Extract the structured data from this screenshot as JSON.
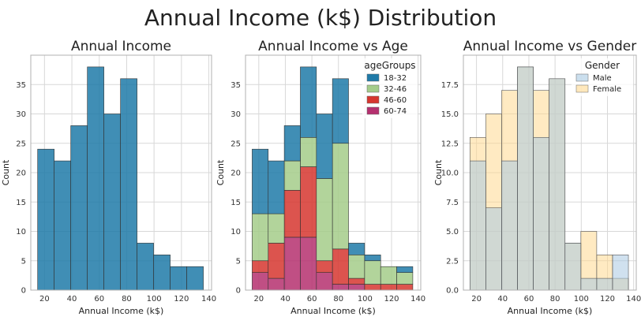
{
  "title": "Annual Income (k$) Distribution",
  "chart_data": [
    {
      "type": "histogram",
      "title": "Annual Income",
      "xlabel": "Annual Income (k$)",
      "ylabel": "Count",
      "xlim": [
        10,
        142
      ],
      "ylim": [
        0,
        40
      ],
      "xticks": [
        20,
        40,
        60,
        80,
        100,
        120,
        140
      ],
      "yticks": [
        0,
        5,
        10,
        15,
        20,
        25,
        30,
        35
      ],
      "bin_edges": [
        15,
        27.1,
        39.2,
        51.3,
        63.4,
        75.5,
        87.6,
        99.7,
        111.8,
        123.9,
        136
      ],
      "series": [
        {
          "values": [
            24,
            22,
            28,
            38,
            30,
            36,
            8,
            6,
            4,
            4
          ],
          "color": "#1f7aa8"
        }
      ],
      "stacked": false,
      "grid": true
    },
    {
      "type": "histogram",
      "title": "Annual Income vs Age",
      "xlabel": "Annual Income (k$)",
      "ylabel": "Count",
      "xlim": [
        10,
        142
      ],
      "ylim": [
        0,
        40
      ],
      "xticks": [
        20,
        40,
        60,
        80,
        100,
        120,
        140
      ],
      "yticks": [
        0,
        5,
        10,
        15,
        20,
        25,
        30,
        35
      ],
      "bin_edges": [
        15,
        27.1,
        39.2,
        51.3,
        63.4,
        75.5,
        87.6,
        99.7,
        111.8,
        123.9,
        136
      ],
      "stacked": true,
      "legend_title": "ageGroups",
      "legend_position": "top-right",
      "series": [
        {
          "name": "60-74",
          "values": [
            3,
            2,
            9,
            9,
            3,
            1,
            1,
            0,
            0,
            0
          ],
          "color": "#b5306f"
        },
        {
          "name": "46-60",
          "values": [
            2,
            6,
            8,
            12,
            2,
            6,
            1,
            1,
            1,
            1
          ],
          "color": "#d6362f"
        },
        {
          "name": "32-46",
          "values": [
            8,
            5,
            5,
            5,
            14,
            18,
            4,
            4,
            3,
            2
          ],
          "color": "#a4cc8a"
        },
        {
          "name": "18-32",
          "values": [
            11,
            9,
            6,
            12,
            11,
            11,
            2,
            1,
            0,
            1
          ],
          "color": "#1f7aa8"
        }
      ],
      "legend_order": [
        "18-32",
        "32-46",
        "46-60",
        "60-74"
      ],
      "grid": true
    },
    {
      "type": "histogram",
      "title": "Annual Income vs Gender",
      "xlabel": "Annual Income (k$)",
      "ylabel": "Count",
      "xlim": [
        10,
        142
      ],
      "ylim": [
        0,
        20
      ],
      "xticks": [
        20,
        40,
        60,
        80,
        100,
        120,
        140
      ],
      "yticks": [
        0.0,
        2.5,
        5.0,
        7.5,
        10.0,
        12.5,
        15.0,
        17.5
      ],
      "ytick_labels": [
        "0.0",
        "2.5",
        "5.0",
        "7.5",
        "10.0",
        "12.5",
        "15.0",
        "17.5"
      ],
      "bin_edges": [
        15,
        27.1,
        39.2,
        51.3,
        63.4,
        75.5,
        87.6,
        99.7,
        111.8,
        123.9,
        136
      ],
      "stacked": false,
      "overlay": true,
      "legend_title": "Gender",
      "legend_position": "top-right",
      "series": [
        {
          "name": "Female",
          "values": [
            13,
            15,
            17,
            19,
            17,
            18,
            4,
            5,
            3,
            1
          ],
          "color": "#ffd88f"
        },
        {
          "name": "Male",
          "values": [
            11,
            7,
            11,
            19,
            13,
            18,
            4,
            1,
            1,
            3
          ],
          "color": "#a9c9e2"
        }
      ],
      "legend_order": [
        "Male",
        "Female"
      ],
      "grid": true
    }
  ]
}
